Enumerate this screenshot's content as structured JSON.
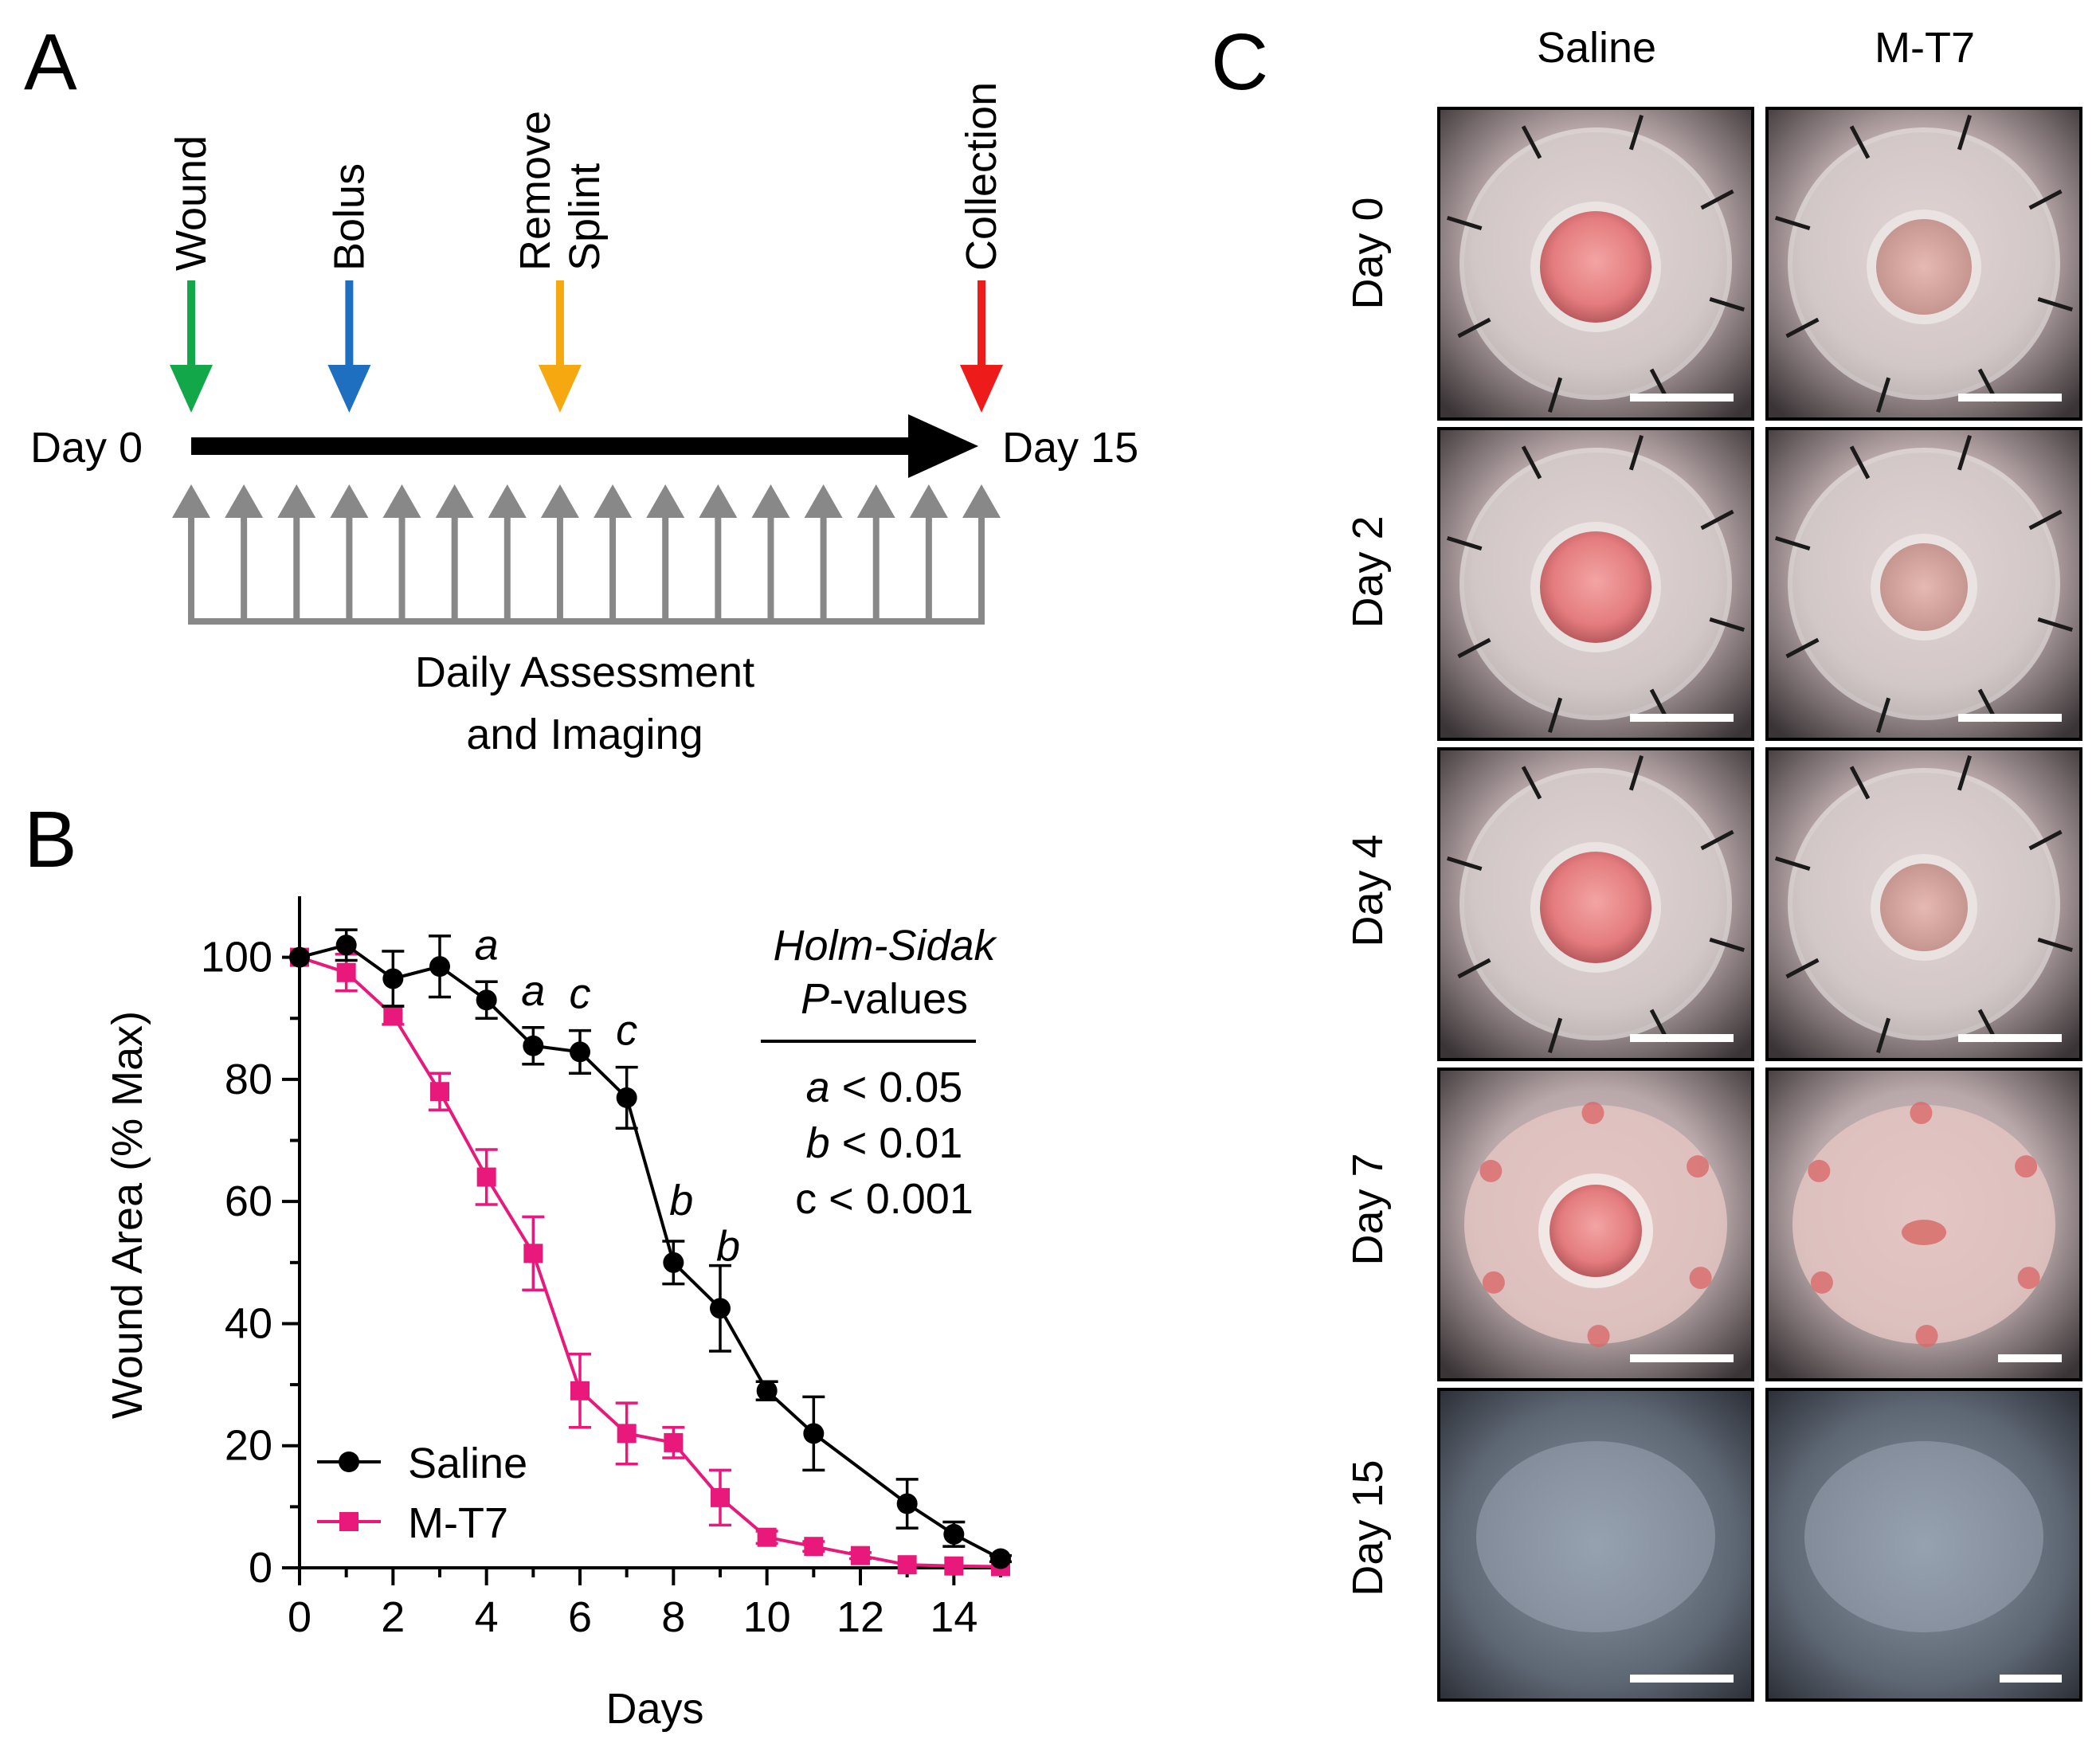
{
  "panels": {
    "a": "A",
    "b": "B",
    "c": "C"
  },
  "timeline": {
    "start_label": "Day 0",
    "end_label": "Day 15",
    "events": [
      {
        "name": "wound",
        "lines": [
          "Wound"
        ],
        "day": 0,
        "color": "#12a84a"
      },
      {
        "name": "bolus",
        "lines": [
          "Bolus"
        ],
        "day": 3,
        "color": "#1e6fbf"
      },
      {
        "name": "remove-splint",
        "lines": [
          "Remove",
          "Splint"
        ],
        "day": 7,
        "color": "#f5a80f"
      },
      {
        "name": "collection",
        "lines": [
          "Collection"
        ],
        "day": 15,
        "color": "#ee1b1b"
      }
    ],
    "assessment_days": [
      0,
      1,
      2,
      3,
      4,
      5,
      6,
      7,
      8,
      9,
      10,
      11,
      12,
      13,
      14,
      15
    ],
    "assessment_label_line1": "Daily Assessment",
    "assessment_label_line2": "and Imaging",
    "arrow_color": "#888888"
  },
  "chart_data": {
    "type": "line",
    "xlabel": "Days",
    "ylabel": "Wound Area (% Max)",
    "xlim": [
      0,
      15
    ],
    "ylim": [
      0,
      110
    ],
    "xticks": [
      0,
      2,
      4,
      6,
      8,
      10,
      12,
      14
    ],
    "yticks": [
      0,
      20,
      40,
      60,
      80,
      100
    ],
    "series": [
      {
        "name": "Saline",
        "color": "#000000",
        "marker": "circle",
        "x": [
          0,
          1,
          2,
          3,
          4,
          5,
          6,
          7,
          8,
          9,
          10,
          11,
          13,
          14,
          15
        ],
        "y": [
          100,
          102,
          96.5,
          98.5,
          93,
          85.5,
          84.5,
          77,
          50,
          42.5,
          29,
          22,
          10.5,
          5.5,
          1.5
        ],
        "err": [
          0,
          2.5,
          4.5,
          5,
          3,
          3,
          3.5,
          5,
          3.5,
          7,
          1.5,
          6,
          4,
          2,
          0.5
        ]
      },
      {
        "name": "M-T7",
        "color": "#e8197b",
        "marker": "square",
        "x": [
          0,
          1,
          2,
          3,
          4,
          5,
          6,
          7,
          8,
          9,
          10,
          11,
          12,
          13,
          14,
          15
        ],
        "y": [
          100,
          97.5,
          90.5,
          78,
          64,
          51.5,
          29,
          22,
          20.5,
          11.5,
          5,
          3.5,
          2,
          0.5,
          0.3,
          0.2
        ],
        "err": [
          0,
          3,
          1.5,
          3,
          4.5,
          6,
          6,
          5,
          2.5,
          4.5,
          1,
          0.8,
          0.5,
          0.3,
          0.2,
          0.1
        ]
      }
    ],
    "significance": [
      {
        "x": 4,
        "y": 93,
        "err": 3,
        "letter": "a"
      },
      {
        "x": 5,
        "y": 85.5,
        "err": 3,
        "letter": "a"
      },
      {
        "x": 6,
        "y": 84.5,
        "err": 3.5,
        "letter": "c"
      },
      {
        "x": 7,
        "y": 77,
        "err": 5,
        "letter": "c"
      },
      {
        "x": 8,
        "y": 50,
        "err": 3.5,
        "letter": "b",
        "side": "right"
      },
      {
        "x": 9,
        "y": 42.5,
        "err": 7,
        "letter": "b",
        "side": "right"
      }
    ],
    "stats_box": {
      "title_line1": "Holm-Sidak",
      "title_p": "P",
      "title_rest": "-values",
      "rows": [
        {
          "letter": "a",
          "text": "< 0.05",
          "italic": true
        },
        {
          "letter": "b",
          "text": "< 0.01",
          "italic": true
        },
        {
          "letter": "c",
          "text": "< 0.001",
          "italic": false
        }
      ]
    },
    "legend_position": "bottom-left"
  },
  "photos": {
    "columns": [
      "Saline",
      "M-T7"
    ],
    "rows": [
      {
        "label": "Day 0",
        "day": 0
      },
      {
        "label": "Day 2",
        "day": 2
      },
      {
        "label": "Day 4",
        "day": 4
      },
      {
        "label": "Day 7",
        "day": 7
      },
      {
        "label": "Day 15",
        "day": 15
      }
    ]
  }
}
